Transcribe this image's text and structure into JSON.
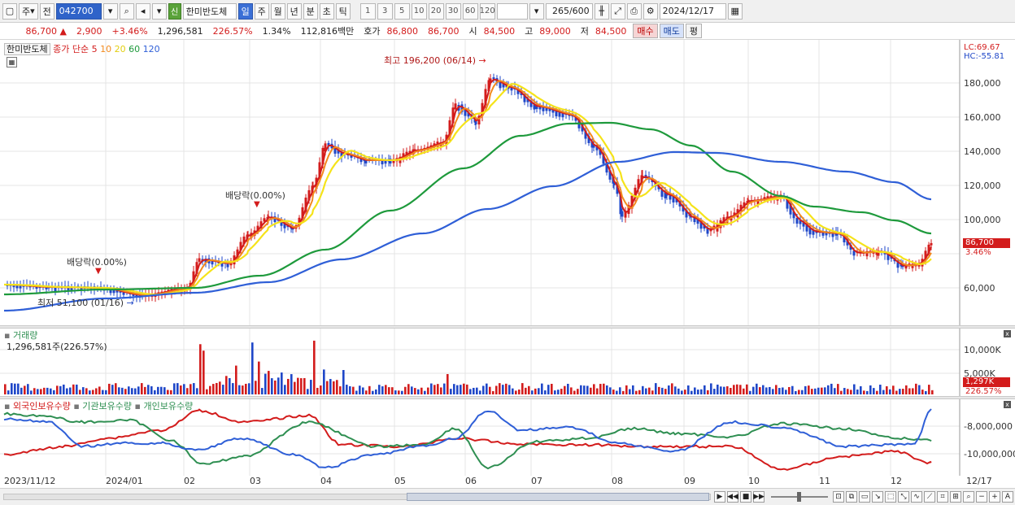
{
  "toolbar": {
    "market": "주",
    "prev": "전",
    "code": "042700",
    "shin": "신",
    "name": "한미반도체",
    "periods": [
      "일",
      "주",
      "월",
      "년",
      "분",
      "초",
      "틱"
    ],
    "active_period": "일",
    "numbers": [
      "1",
      "3",
      "5",
      "10",
      "20",
      "30",
      "60",
      "120"
    ],
    "count": "265/600",
    "date": "2024/12/17"
  },
  "quote": {
    "price": "86,700 ▲",
    "change": "2,900",
    "pct": "+3.46%",
    "volume": "1,296,581",
    "volume_ratio": "226.57%",
    "turnover": "1.34%",
    "amount": "112,816백만",
    "bid_label": "호가",
    "bid": "86,800",
    "ask": "86,700",
    "open_label": "시",
    "open": "84,500",
    "high_label": "고",
    "high": "89,000",
    "low_label": "저",
    "low": "84,500",
    "buy_btn": "매수",
    "sell_btn": "매도",
    "eval_btn": "평"
  },
  "price_panel": {
    "name": "한미반도체",
    "legend_prefix": "종가 단순",
    "ma_labels": [
      "5",
      "10",
      "20",
      "60",
      "120"
    ],
    "ma_colors": [
      "#d31c1c",
      "#f28a1e",
      "#f5e31a",
      "#1e9a3c",
      "#2f5fd7"
    ],
    "lc": "LC:69.67",
    "hc": "HC:-55.81",
    "y_ticks": [
      "180,000",
      "160,000",
      "140,000",
      "120,000",
      "100,000",
      "60,000"
    ],
    "last_tag": "86,700",
    "last_pct": "3.46%",
    "annot_high": "최고 196,200 (06/14)",
    "annot_low": "최저 51,100 (01/16)",
    "annot_div1": "배당락(0.00%)",
    "annot_div2": "배당락(0.00%)"
  },
  "volume_panel": {
    "title": "거래량",
    "subtitle": "1,296,581주(226.57%)",
    "y_ticks": [
      "10,000K",
      "5,000K"
    ],
    "last_tag": "1,297K",
    "last_pct": "226.57%"
  },
  "holder_panel": {
    "legend": [
      "외국인보유수량",
      "기관보유수량",
      "개인보유수량"
    ],
    "colors": [
      "#d31c1c",
      "#2f8f52",
      "#2f5fd7"
    ],
    "y_ticks": [
      "-8,000,000",
      "-10,000,000"
    ]
  },
  "x_axis": {
    "labels": [
      "2023/11/12",
      "2024/01",
      "02",
      "03",
      "04",
      "05",
      "06",
      "07",
      "08",
      "09",
      "10",
      "11",
      "12",
      "12/17"
    ]
  }
}
